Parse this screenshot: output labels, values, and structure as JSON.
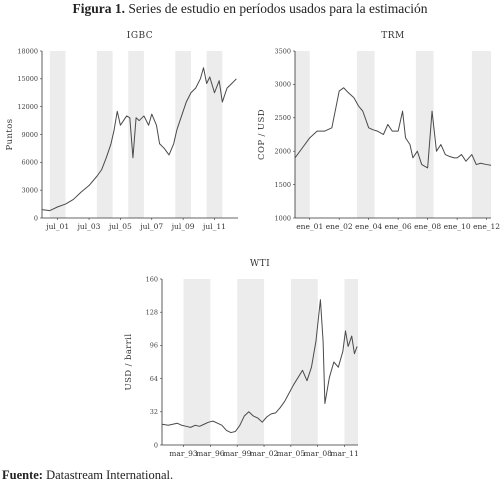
{
  "figure": {
    "title_bold": "Figura 1.",
    "title_rest": " Series de estudio en períodos usados para la estimación",
    "source_bold": "Fuente:",
    "source_rest": " Datastream International."
  },
  "colors": {
    "line": "#4a4a4a",
    "band": "#ececec",
    "axis": "#333333"
  },
  "chart_data": [
    {
      "id": "igbc",
      "type": "line",
      "title": "IGBC",
      "ylabel": "Puntos",
      "xlabel": "",
      "ylim": [
        0,
        18000
      ],
      "yticks": [
        0,
        3000,
        6000,
        9000,
        12000,
        15000,
        18000
      ],
      "xlim": [
        2000.5,
        2013.0
      ],
      "xticks": [
        {
          "label": "jul_01",
          "x": 2001.5
        },
        {
          "label": "jul_03",
          "x": 2003.5
        },
        {
          "label": "jul_05",
          "x": 2005.5
        },
        {
          "label": "jul_07",
          "x": 2007.5
        },
        {
          "label": "jul_09",
          "x": 2009.5
        },
        {
          "label": "jul_11",
          "x": 2011.5
        }
      ],
      "shaded": [
        [
          2001.0,
          2002.0
        ],
        [
          2004.0,
          2005.0
        ],
        [
          2006.0,
          2007.0
        ],
        [
          2009.0,
          2010.0
        ],
        [
          2011.0,
          2012.0
        ]
      ],
      "series": [
        {
          "x": [
            2000.5,
            2001.0,
            2001.5,
            2002.0,
            2002.5,
            2003.0,
            2003.5,
            2004.0,
            2004.3,
            2004.6,
            2004.9,
            2005.1,
            2005.3,
            2005.5,
            2005.7,
            2005.9,
            2006.1,
            2006.3,
            2006.5,
            2006.7,
            2007.0,
            2007.3,
            2007.5,
            2007.8,
            2008.0,
            2008.3,
            2008.6,
            2008.9,
            2009.1,
            2009.4,
            2009.7,
            2010.0,
            2010.3,
            2010.6,
            2010.8,
            2011.0,
            2011.2,
            2011.5,
            2011.8,
            2012.0,
            2012.3,
            2012.6,
            2012.9
          ],
          "y": [
            900,
            800,
            1200,
            1500,
            2000,
            2800,
            3500,
            4500,
            5200,
            6500,
            8000,
            9500,
            11500,
            10000,
            10500,
            11000,
            10800,
            6500,
            10800,
            10500,
            11000,
            10000,
            11200,
            10000,
            8000,
            7500,
            6800,
            8000,
            9500,
            11000,
            12500,
            13500,
            14000,
            15000,
            16200,
            14500,
            15200,
            13500,
            14800,
            12500,
            14000,
            14500,
            15000
          ]
        }
      ]
    },
    {
      "id": "trm",
      "type": "line",
      "title": "TRM",
      "ylabel": "COP / USD",
      "xlabel": "",
      "ylim": [
        1000,
        3500
      ],
      "yticks": [
        1000,
        1500,
        2000,
        2500,
        3000,
        3500
      ],
      "xlim": [
        2000.0,
        2013.3
      ],
      "xticks": [
        {
          "label": "ene_01",
          "x": 2001.0
        },
        {
          "label": "ene_02",
          "x": 2003.0
        },
        {
          "label": "ene_04",
          "x": 2005.0
        },
        {
          "label": "ene_06",
          "x": 2007.0
        },
        {
          "label": "ene_08",
          "x": 2009.0
        },
        {
          "label": "ene_10",
          "x": 2011.0
        },
        {
          "label": "ene_12",
          "x": 2013.0
        }
      ],
      "shaded": [
        [
          2000.0,
          2001.0
        ],
        [
          2004.2,
          2005.4
        ],
        [
          2008.2,
          2009.4
        ],
        [
          2012.0,
          2013.3
        ]
      ],
      "series": [
        {
          "x": [
            2000.0,
            2000.5,
            2001.0,
            2001.5,
            2002.0,
            2002.5,
            2003.0,
            2003.3,
            2003.6,
            2004.0,
            2004.3,
            2004.6,
            2005.0,
            2005.3,
            2005.6,
            2006.0,
            2006.3,
            2006.6,
            2007.0,
            2007.3,
            2007.5,
            2007.8,
            2008.0,
            2008.3,
            2008.6,
            2009.0,
            2009.3,
            2009.6,
            2009.9,
            2010.2,
            2010.5,
            2010.8,
            2011.0,
            2011.3,
            2011.6,
            2012.0,
            2012.3,
            2012.6,
            2013.0,
            2013.3
          ],
          "y": [
            1900,
            2050,
            2200,
            2300,
            2300,
            2350,
            2900,
            2950,
            2880,
            2800,
            2680,
            2600,
            2350,
            2320,
            2300,
            2250,
            2400,
            2300,
            2300,
            2600,
            2200,
            2100,
            1900,
            2000,
            1800,
            1750,
            2600,
            2000,
            2100,
            1950,
            1920,
            1900,
            1900,
            1950,
            1850,
            1950,
            1800,
            1820,
            1800,
            1790
          ]
        }
      ]
    },
    {
      "id": "wti",
      "type": "line",
      "title": "WTI",
      "ylabel": "USD / barril",
      "xlabel": "",
      "ylim": [
        0,
        160
      ],
      "yticks": [
        0,
        32,
        64,
        96,
        128,
        160
      ],
      "xlim": [
        1990.8,
        2012.7
      ],
      "xticks": [
        {
          "label": "mar_93",
          "x": 1993.2
        },
        {
          "label": "mar_96",
          "x": 1996.2
        },
        {
          "label": "mar_99",
          "x": 1999.2
        },
        {
          "label": "mar_02",
          "x": 2002.2
        },
        {
          "label": "mar_05",
          "x": 2005.2
        },
        {
          "label": "mar_08",
          "x": 2008.2
        },
        {
          "label": "mar_11",
          "x": 2011.2
        }
      ],
      "shaded": [
        [
          1993.2,
          1996.2
        ],
        [
          1999.2,
          2002.2
        ],
        [
          2005.2,
          2008.2
        ],
        [
          2011.2,
          2012.7
        ]
      ],
      "series": [
        {
          "x": [
            1990.8,
            1991.5,
            1992.0,
            1992.5,
            1993.0,
            1993.5,
            1994.0,
            1994.5,
            1995.0,
            1995.5,
            1996.0,
            1996.5,
            1997.0,
            1997.5,
            1998.0,
            1998.5,
            1999.0,
            1999.5,
            2000.0,
            2000.5,
            2001.0,
            2001.5,
            2002.0,
            2002.5,
            2003.0,
            2003.5,
            2004.0,
            2004.5,
            2005.0,
            2005.5,
            2006.0,
            2006.5,
            2007.0,
            2007.5,
            2008.0,
            2008.5,
            2008.8,
            2009.0,
            2009.5,
            2010.0,
            2010.5,
            2011.0,
            2011.3,
            2011.6,
            2012.0,
            2012.3,
            2012.6
          ],
          "y": [
            20,
            19,
            20,
            21,
            19,
            18,
            17,
            19,
            18,
            20,
            22,
            23,
            21,
            19,
            14,
            12,
            13,
            19,
            28,
            32,
            28,
            26,
            22,
            27,
            30,
            31,
            36,
            42,
            50,
            58,
            65,
            72,
            62,
            75,
            100,
            140,
            100,
            40,
            65,
            80,
            75,
            90,
            110,
            95,
            105,
            88,
            95
          ]
        }
      ]
    }
  ]
}
